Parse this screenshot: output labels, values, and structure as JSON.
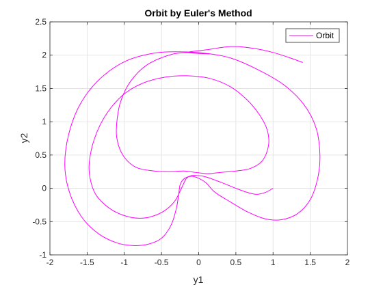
{
  "chart_data": {
    "type": "line",
    "title": "Orbit by Euler's Method",
    "xlabel": "y1",
    "ylabel": "y2",
    "xlim": [
      -2,
      2
    ],
    "ylim": [
      -1,
      2.5
    ],
    "xticks": [
      "-2",
      "-1.5",
      "-1",
      "-0.5",
      "0",
      "0.5",
      "1",
      "1.5",
      "2"
    ],
    "yticks": [
      "-1",
      "-0.5",
      "0",
      "0.5",
      "1",
      "1.5",
      "2",
      "2.5"
    ],
    "grid": true,
    "legend": {
      "position": "top-right",
      "entries": [
        "Orbit"
      ]
    },
    "series": [
      {
        "name": "Orbit",
        "color": "#ff00ff",
        "points": [
          [
            1.0,
            0.0
          ],
          [
            0.9,
            -0.06
          ],
          [
            0.78,
            -0.09
          ],
          [
            0.65,
            -0.06
          ],
          [
            0.5,
            0.0
          ],
          [
            0.3,
            0.09
          ],
          [
            0.1,
            0.17
          ],
          [
            0.0,
            0.19
          ],
          [
            -0.1,
            0.19
          ],
          [
            -0.17,
            0.14
          ],
          [
            -0.24,
            -0.02
          ],
          [
            -0.32,
            -0.19
          ],
          [
            -0.45,
            -0.33
          ],
          [
            -0.62,
            -0.42
          ],
          [
            -0.8,
            -0.45
          ],
          [
            -1.0,
            -0.41
          ],
          [
            -1.2,
            -0.3
          ],
          [
            -1.38,
            -0.1
          ],
          [
            -1.46,
            0.15
          ],
          [
            -1.47,
            0.4
          ],
          [
            -1.4,
            0.75
          ],
          [
            -1.25,
            1.1
          ],
          [
            -1.02,
            1.4
          ],
          [
            -0.75,
            1.58
          ],
          [
            -0.45,
            1.67
          ],
          [
            -0.15,
            1.69
          ],
          [
            0.15,
            1.65
          ],
          [
            0.42,
            1.53
          ],
          [
            0.65,
            1.33
          ],
          [
            0.82,
            1.1
          ],
          [
            0.92,
            0.88
          ],
          [
            0.94,
            0.65
          ],
          [
            0.86,
            0.42
          ],
          [
            0.7,
            0.3
          ],
          [
            0.5,
            0.26
          ],
          [
            0.3,
            0.24
          ],
          [
            0.12,
            0.22
          ],
          [
            -0.05,
            0.24
          ],
          [
            -0.2,
            0.26
          ],
          [
            -0.38,
            0.25
          ],
          [
            -0.6,
            0.26
          ],
          [
            -0.85,
            0.32
          ],
          [
            -1.02,
            0.5
          ],
          [
            -1.1,
            0.75
          ],
          [
            -1.1,
            1.0
          ],
          [
            -1.05,
            1.3
          ],
          [
            -0.92,
            1.6
          ],
          [
            -0.7,
            1.85
          ],
          [
            -0.4,
            2.0
          ],
          [
            -0.15,
            2.04
          ],
          [
            0.15,
            2.02
          ],
          [
            0.45,
            1.95
          ],
          [
            0.8,
            1.78
          ],
          [
            1.15,
            1.55
          ],
          [
            1.42,
            1.25
          ],
          [
            1.58,
            0.9
          ],
          [
            1.63,
            0.5
          ],
          [
            1.6,
            0.15
          ],
          [
            1.5,
            -0.17
          ],
          [
            1.33,
            -0.38
          ],
          [
            1.12,
            -0.47
          ],
          [
            0.9,
            -0.46
          ],
          [
            0.65,
            -0.35
          ],
          [
            0.42,
            -0.2
          ],
          [
            0.22,
            -0.06
          ],
          [
            0.1,
            0.08
          ],
          [
            0.0,
            0.15
          ],
          [
            -0.1,
            0.18
          ],
          [
            -0.2,
            0.14
          ],
          [
            -0.25,
            0.05
          ],
          [
            -0.27,
            -0.1
          ],
          [
            -0.3,
            -0.3
          ],
          [
            -0.37,
            -0.55
          ],
          [
            -0.5,
            -0.75
          ],
          [
            -0.68,
            -0.84
          ],
          [
            -0.88,
            -0.86
          ],
          [
            -1.1,
            -0.82
          ],
          [
            -1.35,
            -0.68
          ],
          [
            -1.58,
            -0.42
          ],
          [
            -1.74,
            -0.05
          ],
          [
            -1.8,
            0.35
          ],
          [
            -1.75,
            0.8
          ],
          [
            -1.6,
            1.25
          ],
          [
            -1.35,
            1.62
          ],
          [
            -1.0,
            1.9
          ],
          [
            -0.6,
            2.03
          ],
          [
            -0.2,
            2.05
          ],
          [
            0.15,
            2.02
          ],
          [
            -0.15,
            2.04
          ],
          [
            0.1,
            2.08
          ],
          [
            0.45,
            2.13
          ],
          [
            0.75,
            2.1
          ],
          [
            1.0,
            2.04
          ],
          [
            1.2,
            1.97
          ],
          [
            1.4,
            1.89
          ]
        ]
      }
    ]
  }
}
